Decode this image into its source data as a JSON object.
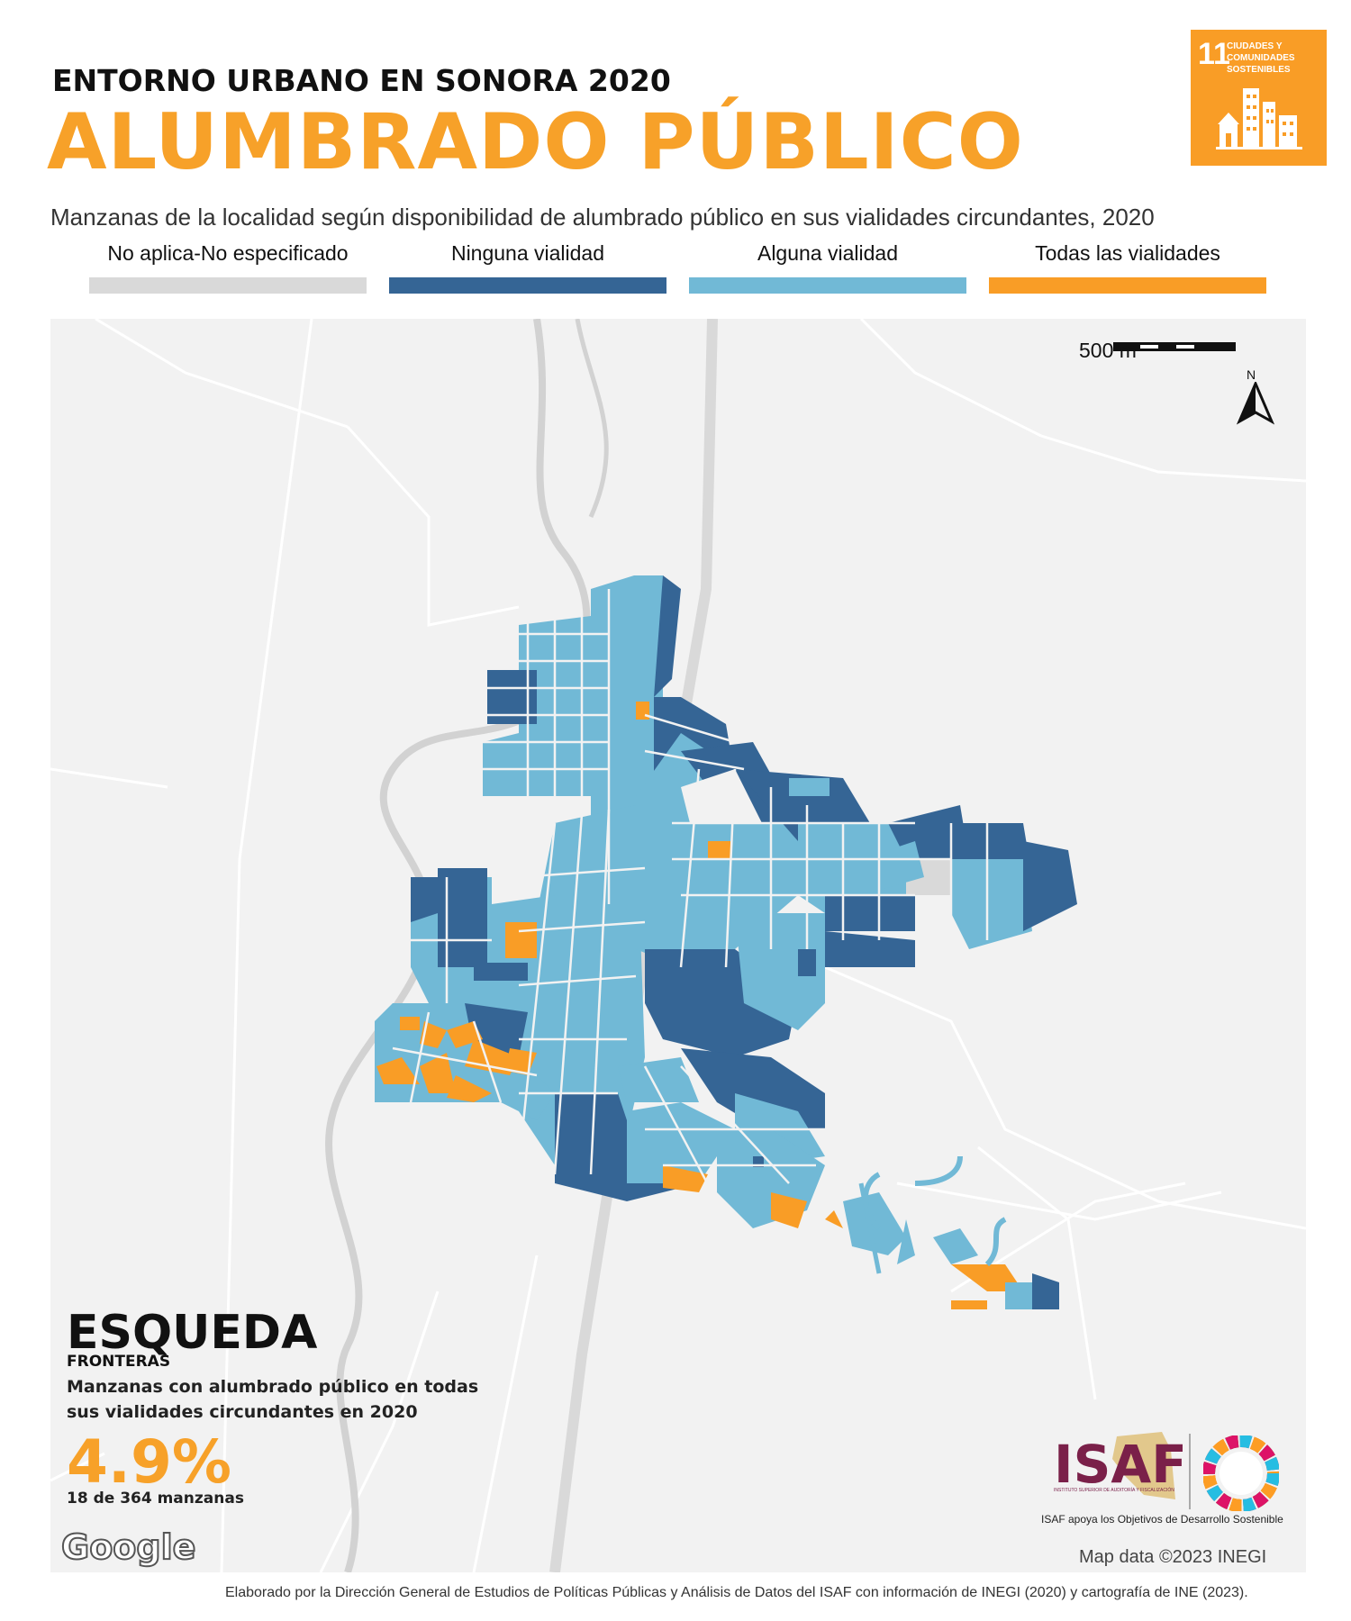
{
  "header": {
    "subtitle": "ENTORNO URBANO EN SONORA 2020",
    "title": "ALUMBRADO PÚBLICO",
    "description": "Manzanas de la localidad según disponibilidad de alumbrado público en sus vialidades circundantes, 2020"
  },
  "sdg_badge": {
    "number": "11",
    "text": "CIUDADES Y COMUNIDADES SOSTENIBLES",
    "color": "#f99d26"
  },
  "legend": [
    {
      "label": "No aplica-No especificado",
      "color": "#d9d9d9"
    },
    {
      "label": "Ninguna vialidad",
      "color": "#356595"
    },
    {
      "label": "Alguna vialidad",
      "color": "#71b9d6"
    },
    {
      "label": "Todas las vialidades",
      "color": "#f99d26"
    }
  ],
  "map": {
    "scale_label": "500 m",
    "north_label": "N",
    "attribution": "Map data ©2023 INEGI",
    "google_logo": "Google"
  },
  "locality": {
    "name": "ESQUEDA",
    "municipality": "FRONTERAS",
    "stat_label": "Manzanas con alumbrado público en todas sus vialidades circundantes en 2020",
    "stat_value": "4.9%",
    "stat_detail": "18 de 364 manzanas"
  },
  "isaf": {
    "logo_text": "ISAF",
    "logo_small": "INSTITUTO SUPERIOR DE AUDITORÍA Y FISCALIZACIÓN",
    "caption": "ISAF apoya los Objetivos de Desarrollo Sostenible"
  },
  "footer": "Elaborado por la Dirección General de Estudios de Políticas Públicas y Análisis de Datos del ISAF con información de INEGI (2020) y cartografía de INE (2023)."
}
